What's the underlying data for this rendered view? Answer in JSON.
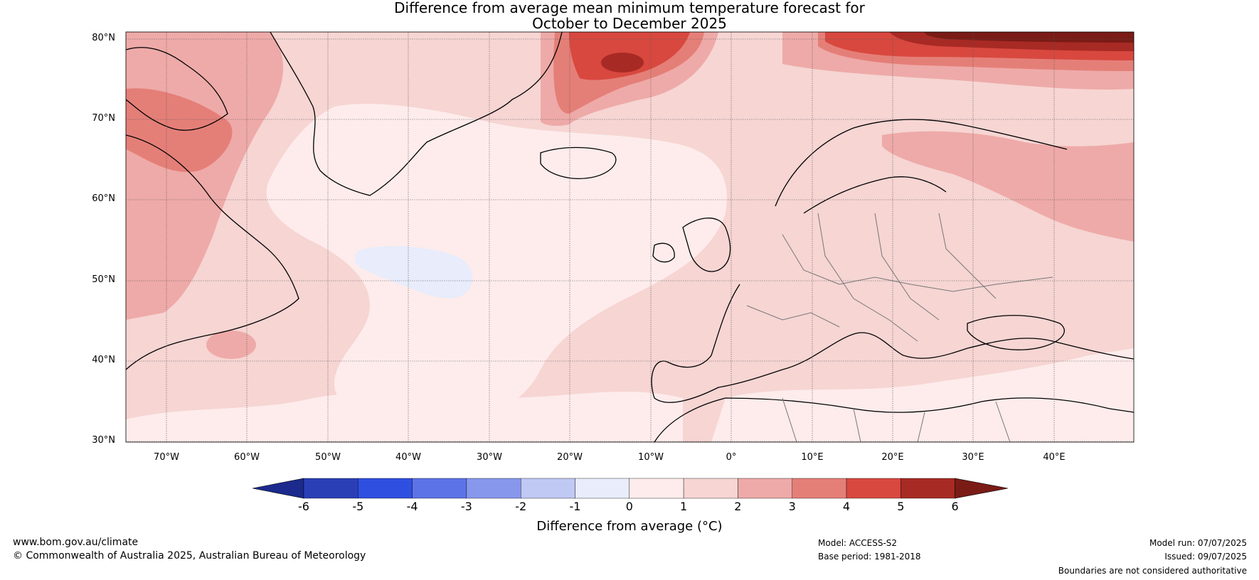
{
  "title_line1": "Difference from average mean minimum temperature forecast for",
  "title_line2": "October to December 2025",
  "latitude_labels": [
    "80°N",
    "70°N",
    "60°N",
    "50°N",
    "40°N",
    "30°N"
  ],
  "longitude_labels": [
    "70°W",
    "60°W",
    "50°W",
    "40°W",
    "30°W",
    "20°W",
    "10°W",
    "0°",
    "10°E",
    "20°E",
    "30°E",
    "40°E"
  ],
  "colorbar": {
    "ticks": [
      "-6",
      "-5",
      "-4",
      "-3",
      "-2",
      "-1",
      "0",
      "1",
      "2",
      "3",
      "4",
      "5",
      "6"
    ],
    "colors": [
      "#1b2a8c",
      "#2a3fb6",
      "#2f4fe0",
      "#5c73e8",
      "#8797ec",
      "#c0c9f4",
      "#e8ecfb",
      "#fdeceb",
      "#f6d5d3",
      "#eeaaa8",
      "#e47f78",
      "#d8483f",
      "#a82a24",
      "#7a1b16"
    ],
    "label": "Difference from average (°C)"
  },
  "footer": {
    "website": "www.bom.gov.au/climate",
    "copyright": "© Commonwealth of Australia 2025, Australian Bureau of Meteorology",
    "model": "Model: ACCESS-S2",
    "base_period": "Base period: 1981-2018",
    "model_run": "Model run: 07/07/2025",
    "issued": "Issued: 09/07/2025",
    "disclaimer": "Boundaries are not considered authoritative"
  }
}
